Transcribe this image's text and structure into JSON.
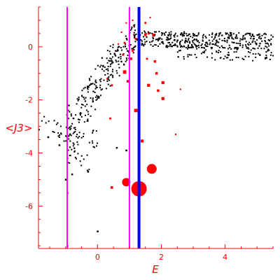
{
  "chart_data": {
    "type": "scatter",
    "title": "",
    "xlabel": "E",
    "ylabel": "<J3>",
    "xlim": [
      -1.85,
      5.5
    ],
    "ylim": [
      -7.6,
      1.5
    ],
    "x_ticks": [
      0,
      2,
      4
    ],
    "y_ticks": [
      0,
      -2,
      -4,
      -6
    ],
    "grid": false,
    "legend": "none",
    "colors": {
      "axis": "#ff0000",
      "points_black": "#000000",
      "points_red": "#ff0000",
      "line_magenta": "#ff00ff",
      "line_blue": "#0000ff"
    },
    "vertical_lines": [
      {
        "x": -0.95,
        "color": "#ff00ff",
        "width": 2
      },
      {
        "x": 1.0,
        "color": "#ff00ff",
        "width": 2
      },
      {
        "x": 1.3,
        "color": "#0000ff",
        "width": 4
      }
    ],
    "black_bands": [
      {
        "x0": -1.85,
        "x1": 0.0,
        "y0": -2.8,
        "y1": -3.5,
        "spread": 0.35,
        "n": 30
      },
      {
        "x0": -1.3,
        "x1": -0.2,
        "y0": -3.0,
        "y1": -4.6,
        "spread": 0.35,
        "n": 20
      },
      {
        "x0": -1.0,
        "x1": 0.5,
        "y0": -3.0,
        "y1": -0.5,
        "spread": 0.7,
        "n": 140
      },
      {
        "x0": -0.95,
        "x1": 0.0,
        "y0": -4.3,
        "y1": -1.6,
        "spread": 0.6,
        "n": 40
      },
      {
        "x0": 0.4,
        "x1": 1.2,
        "y0": -1.0,
        "y1": 0.4,
        "spread": 0.6,
        "n": 90
      },
      {
        "x0": 1.2,
        "x1": 5.5,
        "y0": 0.3,
        "y1": 0.2,
        "spread": 0.3,
        "n": 380
      },
      {
        "x0": 2.5,
        "x1": 5.5,
        "y0": -0.2,
        "y1": -0.3,
        "spread": 0.25,
        "n": 90
      }
    ],
    "black_points": [
      {
        "x": -1.55,
        "y": -3.4
      },
      {
        "x": -1.2,
        "y": -3.7
      },
      {
        "x": -0.95,
        "y": -5.5
      },
      {
        "x": -1.0,
        "y": -5.0
      },
      {
        "x": -0.8,
        "y": -4.8
      },
      {
        "x": -0.95,
        "y": -7.5
      },
      {
        "x": 0.0,
        "y": -6.95
      },
      {
        "x": -0.3,
        "y": -4.7
      },
      {
        "x": 0.6,
        "y": -3.8
      },
      {
        "x": 0.9,
        "y": -3.9
      }
    ],
    "red_points": [
      {
        "x": 1.3,
        "y": -5.35,
        "size": 11
      },
      {
        "x": 1.7,
        "y": -4.6,
        "size": 7
      },
      {
        "x": 0.9,
        "y": -5.1,
        "size": 6
      },
      {
        "x": 0.45,
        "y": -5.3,
        "size": 2.5
      },
      {
        "x": 1.4,
        "y": -3.55,
        "size": 3
      },
      {
        "x": 1.2,
        "y": -2.4,
        "size": 3.5
      },
      {
        "x": 0.85,
        "y": -0.95,
        "size": 3.5
      },
      {
        "x": 0.8,
        "y": -0.3,
        "size": 2
      },
      {
        "x": 0.85,
        "y": 0.15,
        "size": 2
      },
      {
        "x": 0.75,
        "y": 0.55,
        "size": 1.5
      },
      {
        "x": 0.9,
        "y": 0.9,
        "size": 1.5
      },
      {
        "x": 1.0,
        "y": 0.5,
        "size": 1.5
      },
      {
        "x": 1.1,
        "y": 1.0,
        "size": 1.5
      },
      {
        "x": 1.0,
        "y": 0.05,
        "size": 2
      },
      {
        "x": 1.2,
        "y": 0.3,
        "size": 2
      },
      {
        "x": 1.05,
        "y": -0.45,
        "size": 2.5
      },
      {
        "x": 1.5,
        "y": 0.45,
        "size": 2.5
      },
      {
        "x": 1.5,
        "y": 0.9,
        "size": 2
      },
      {
        "x": 1.6,
        "y": 0.5,
        "size": 2
      },
      {
        "x": 1.55,
        "y": -0.45,
        "size": 2
      },
      {
        "x": 1.75,
        "y": 0.45,
        "size": 2.5
      },
      {
        "x": 1.8,
        "y": -0.55,
        "size": 2.5
      },
      {
        "x": 1.85,
        "y": -1.0,
        "size": 2.5
      },
      {
        "x": 1.6,
        "y": -1.45,
        "size": 3
      },
      {
        "x": 2.05,
        "y": -1.35,
        "size": 3
      },
      {
        "x": 1.9,
        "y": -1.65,
        "size": 2.5
      },
      {
        "x": 2.05,
        "y": -1.95,
        "size": 3
      },
      {
        "x": 0.95,
        "y": -1.3,
        "size": 2.5
      },
      {
        "x": 0.45,
        "y": -1.45,
        "size": 2
      },
      {
        "x": 0.4,
        "y": -2.7,
        "size": 2
      },
      {
        "x": 1.1,
        "y": -0.15,
        "size": 2
      },
      {
        "x": 2.6,
        "y": -1.6,
        "size": 1.5
      },
      {
        "x": 2.45,
        "y": -3.3,
        "size": 1.5
      },
      {
        "x": 0.3,
        "y": -1.2,
        "size": 1.5
      },
      {
        "x": 0.65,
        "y": 0.1,
        "size": 1.5
      },
      {
        "x": 1.65,
        "y": 1.1,
        "size": 1.5
      }
    ]
  }
}
